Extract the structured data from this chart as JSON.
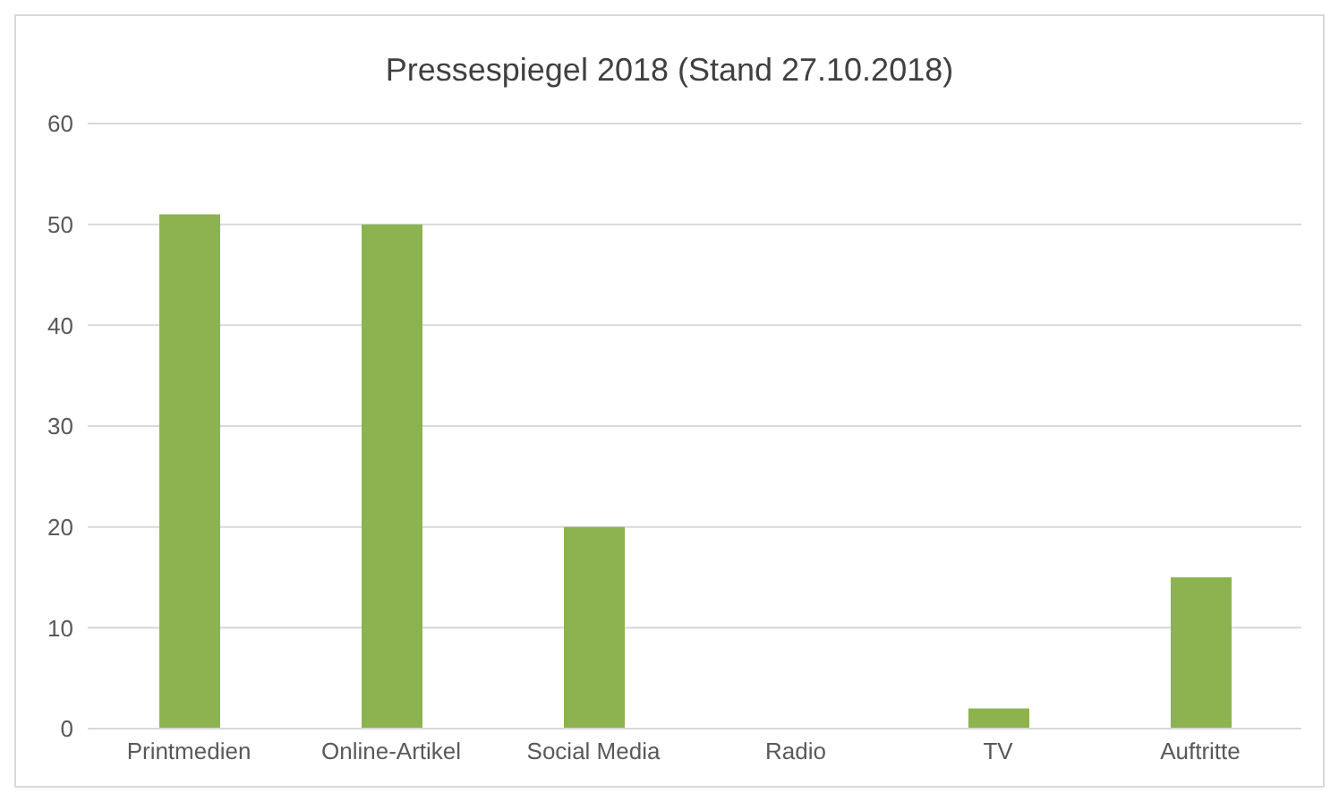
{
  "chart_data": {
    "type": "bar",
    "title": "Pressespiegel 2018 (Stand 27.10.2018)",
    "categories": [
      "Printmedien",
      "Online-Artikel",
      "Social Media",
      "Radio",
      "TV",
      "Auftritte"
    ],
    "values": [
      51,
      50,
      20,
      0,
      2,
      15
    ],
    "color": "#8cb34f",
    "ylim": [
      0,
      60
    ],
    "yticks": [
      0,
      10,
      20,
      30,
      40,
      50,
      60
    ],
    "grid": "y",
    "legend": false
  }
}
